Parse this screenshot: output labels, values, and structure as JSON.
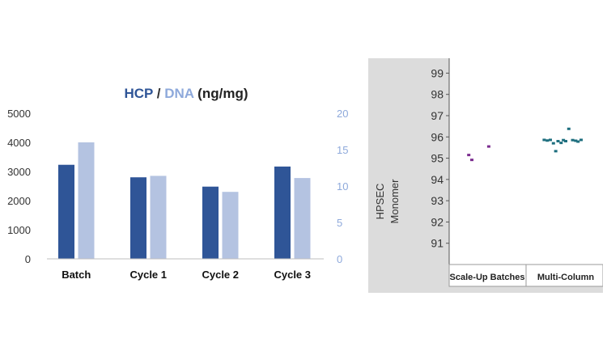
{
  "chart_data": [
    {
      "type": "bar",
      "title_parts": {
        "primary": "HCP",
        "separator": " / ",
        "secondary": "DNA",
        "units": " (ng/mg)"
      },
      "categories": [
        "Batch",
        "Cycle 1",
        "Cycle 2",
        "Cycle 3"
      ],
      "series": [
        {
          "name": "HCP",
          "axis": "left",
          "color": "#2f5597",
          "values": [
            3230,
            2800,
            2480,
            3170
          ]
        },
        {
          "name": "DNA",
          "axis": "right",
          "color": "#b4c3e1",
          "values": [
            16,
            11.4,
            9.2,
            11.1
          ]
        }
      ],
      "y_left": {
        "range": [
          0,
          5000
        ],
        "ticks": [
          "0",
          "1000",
          "2000",
          "3000",
          "4000",
          "5000"
        ],
        "tick_color": "#333333"
      },
      "y_right": {
        "range": [
          0,
          20
        ],
        "ticks": [
          "0",
          "5",
          "10",
          "15",
          "20"
        ],
        "tick_color": "#8ea9db"
      },
      "grid": false
    },
    {
      "type": "scatter",
      "ylabel_lines": [
        "HPSEC",
        "Monomer"
      ],
      "categories": [
        "Scale-Up Batches",
        "Multi-Column"
      ],
      "yticks": [
        "91",
        "92",
        "93",
        "94",
        "95",
        "96",
        "97",
        "98",
        "99"
      ],
      "ylim": [
        90,
        99.7
      ],
      "grid": false,
      "groups": [
        {
          "category": "Scale-Up Batches",
          "color": "#7b2c8f",
          "points": [
            [
              -0.24,
              95.15
            ],
            [
              -0.2,
              94.92
            ],
            [
              0.02,
              95.55
            ]
          ]
        },
        {
          "category": "Multi-Column",
          "color": "#1d6e7e",
          "points": [
            [
              -0.28,
              95.86
            ],
            [
              -0.24,
              95.83
            ],
            [
              -0.2,
              95.86
            ],
            [
              -0.16,
              95.7
            ],
            [
              -0.13,
              95.33
            ],
            [
              -0.1,
              95.8
            ],
            [
              -0.06,
              95.72
            ],
            [
              -0.03,
              95.85
            ],
            [
              0.0,
              95.8
            ],
            [
              0.04,
              96.38
            ],
            [
              0.09,
              95.85
            ],
            [
              0.13,
              95.82
            ],
            [
              0.16,
              95.78
            ],
            [
              0.2,
              95.86
            ]
          ]
        }
      ]
    }
  ]
}
